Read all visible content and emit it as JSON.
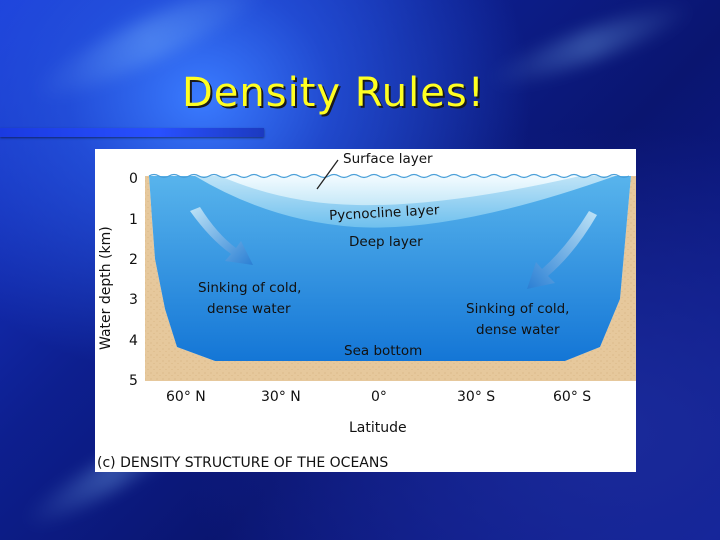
{
  "slide": {
    "title": "Density Rules!"
  },
  "figure": {
    "y_axis_label": "Water depth (km)",
    "depth_ticks": [
      "0",
      "1",
      "2",
      "3",
      "4",
      "5"
    ],
    "x_axis_label": "Latitude",
    "latitude_ticks": [
      "60° N",
      "30° N",
      "0°",
      "30° S",
      "60° S"
    ],
    "layers": {
      "surface": "Surface layer",
      "pycnocline": "Pycnocline layer",
      "deep": "Deep layer",
      "bottom": "Sea bottom"
    },
    "sinking_left": [
      "Sinking of cold,",
      "dense water"
    ],
    "sinking_right": [
      "Sinking of cold,",
      "dense water"
    ],
    "caption": "(c) DENSITY STRUCTURE OF THE OCEANS"
  },
  "colors": {
    "title": "#ffff22",
    "seafloor": "#e8cba0",
    "deep_water": "#1e8ee0",
    "surface_water": "#d8f0fb",
    "arrow": "#2a7fd4"
  }
}
